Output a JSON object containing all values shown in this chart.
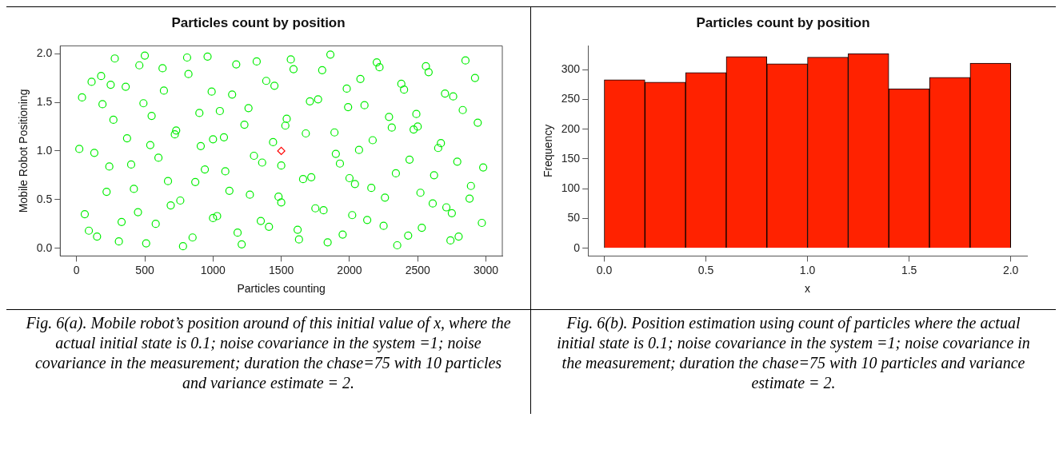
{
  "chart_data": [
    {
      "type": "scatter",
      "title": "Particles count by position",
      "xlabel": "Particles counting",
      "ylabel": "Mobile Robot Positioning",
      "xlim": [
        -120,
        3120
      ],
      "ylim": [
        -0.08,
        2.08
      ],
      "xticks": [
        0,
        500,
        1000,
        1500,
        2000,
        2500,
        3000
      ],
      "yticks": [
        {
          "value": 0,
          "label": "0.0"
        },
        {
          "value": 0.5,
          "label": "0.5"
        },
        {
          "value": 1,
          "label": "1.0"
        },
        {
          "value": 1.5,
          "label": "1.5"
        },
        {
          "value": 2,
          "label": "2.0"
        }
      ],
      "marker": "circle",
      "series": [
        {
          "color": "#00ee00",
          "x": [
            20,
            60,
            110,
            150,
            190,
            240,
            280,
            330,
            370,
            420,
            460,
            510,
            550,
            600,
            640,
            690,
            730,
            780,
            820,
            870,
            910,
            960,
            1000,
            1050,
            1090,
            1140,
            1180,
            1230,
            1270,
            1320,
            1360,
            1410,
            1450,
            1500,
            1540,
            1590,
            1630,
            1680,
            1720,
            1770,
            1810,
            1860,
            1900,
            1950,
            1990,
            2040,
            2080,
            2130,
            2170,
            2220,
            2260,
            2310,
            2350,
            2400,
            2440,
            2490,
            2530,
            2580,
            2620,
            2670,
            2710,
            2760,
            2800,
            2850,
            2890,
            2940,
            2980,
            40,
            90,
            130,
            180,
            220,
            270,
            310,
            360,
            400,
            450,
            490,
            540,
            580,
            630,
            670,
            720,
            760,
            810,
            850,
            900,
            940,
            990,
            1030,
            1080,
            1120,
            1170,
            1210,
            1260,
            1300,
            1350,
            1390,
            1440,
            1480,
            1530,
            1570,
            1620,
            1660,
            1710,
            1750,
            1800,
            1840,
            1890,
            1930,
            1980,
            2020,
            2070,
            2110,
            2160,
            2200,
            2250,
            2290,
            2340,
            2380,
            2430,
            2470,
            2520,
            2560,
            2610,
            2650,
            2700,
            2740,
            2790,
            2830,
            2880,
            2920,
            2970,
            1000,
            2000,
            500,
            2500,
            1500,
            250,
            2750
          ],
          "values": [
            1.02,
            0.35,
            1.71,
            0.12,
            1.48,
            0.84,
            1.95,
            0.27,
            1.13,
            0.61,
            1.88,
            0.05,
            1.36,
            0.93,
            1.62,
            0.44,
            1.21,
            0.02,
            1.79,
            0.68,
            1.05,
            1.97,
            0.31,
            1.41,
            0.79,
            1.58,
            0.16,
            1.27,
            0.55,
            1.92,
            0.88,
            0.22,
            1.67,
            0.47,
            1.33,
            1.84,
            0.09,
            1.18,
            0.73,
            1.53,
            0.39,
            1.99,
            0.97,
            0.14,
            1.45,
            0.66,
            1.74,
            0.29,
            1.11,
            1.86,
            0.52,
            1.24,
            0.03,
            1.63,
            0.91,
            1.38,
            0.21,
            1.81,
            0.75,
            1.08,
            0.42,
            1.56,
            0.12,
            1.93,
            0.64,
            1.29,
            0.83,
            1.55,
            0.18,
            0.98,
            1.77,
            0.58,
            1.32,
            0.07,
            1.66,
            0.86,
            0.37,
            1.49,
            1.06,
            0.25,
            1.85,
            0.69,
            1.17,
            0.49,
            1.96,
            0.11,
            1.39,
            0.81,
            1.61,
            0.33,
            1.14,
            0.59,
            1.89,
            0.04,
            1.44,
            0.95,
            0.28,
            1.72,
            1.09,
            0.53,
            1.26,
            1.94,
            0.19,
            0.71,
            1.51,
            0.41,
            1.83,
            0.06,
            1.19,
            0.87,
            1.64,
            0.34,
            1.01,
            1.47,
            0.62,
            1.91,
            0.23,
            1.35,
            0.77,
            1.69,
            0.13,
            1.22,
            0.57,
            1.87,
            0.46,
            1.03,
            1.59,
            0.08,
            0.89,
            1.42,
            0.51,
            1.75,
            0.26,
            1.12,
            0.72,
            1.98,
            1.25,
            0.85,
            1.68,
            0.36
          ]
        },
        {
          "color": "#ff0000",
          "marker": "diamond",
          "x": [
            1500
          ],
          "values": [
            1.0
          ]
        }
      ],
      "annotations": [
        "Fig. 6(a). Mobile robot’s position around of this initial value of x, where the actual initial state is 0.1; noise covariance in the system =1; noise covariance in the measurement; duration the chase=75 with 10 particles and variance estimate = 2."
      ]
    },
    {
      "type": "histogram",
      "title": "Particles count by position",
      "xlabel": "x",
      "ylabel": "Frequency",
      "color": "#ff2200",
      "bins": [
        0,
        0.2,
        0.4,
        0.6,
        0.8,
        1.0,
        1.2,
        1.4,
        1.6,
        1.8,
        2.0
      ],
      "values": [
        283,
        279,
        295,
        322,
        310,
        321,
        327,
        268,
        287,
        311
      ],
      "xlim": [
        -0.08,
        2.08
      ],
      "ylim": [
        -13,
        340
      ],
      "xticks": [
        {
          "value": 0,
          "label": "0.0"
        },
        {
          "value": 0.5,
          "label": "0.5"
        },
        {
          "value": 1,
          "label": "1.0"
        },
        {
          "value": 1.5,
          "label": "1.5"
        },
        {
          "value": 2,
          "label": "2.0"
        }
      ],
      "yticks": [
        0,
        50,
        100,
        150,
        200,
        250,
        300
      ],
      "annotations": [
        "Fig. 6(b). Position estimation using count of particles where the actual initial state is 0.1; noise covariance in the system =1; noise covariance in the measurement; duration the chase=75 with 10 particles and variance estimate = 2."
      ]
    }
  ]
}
